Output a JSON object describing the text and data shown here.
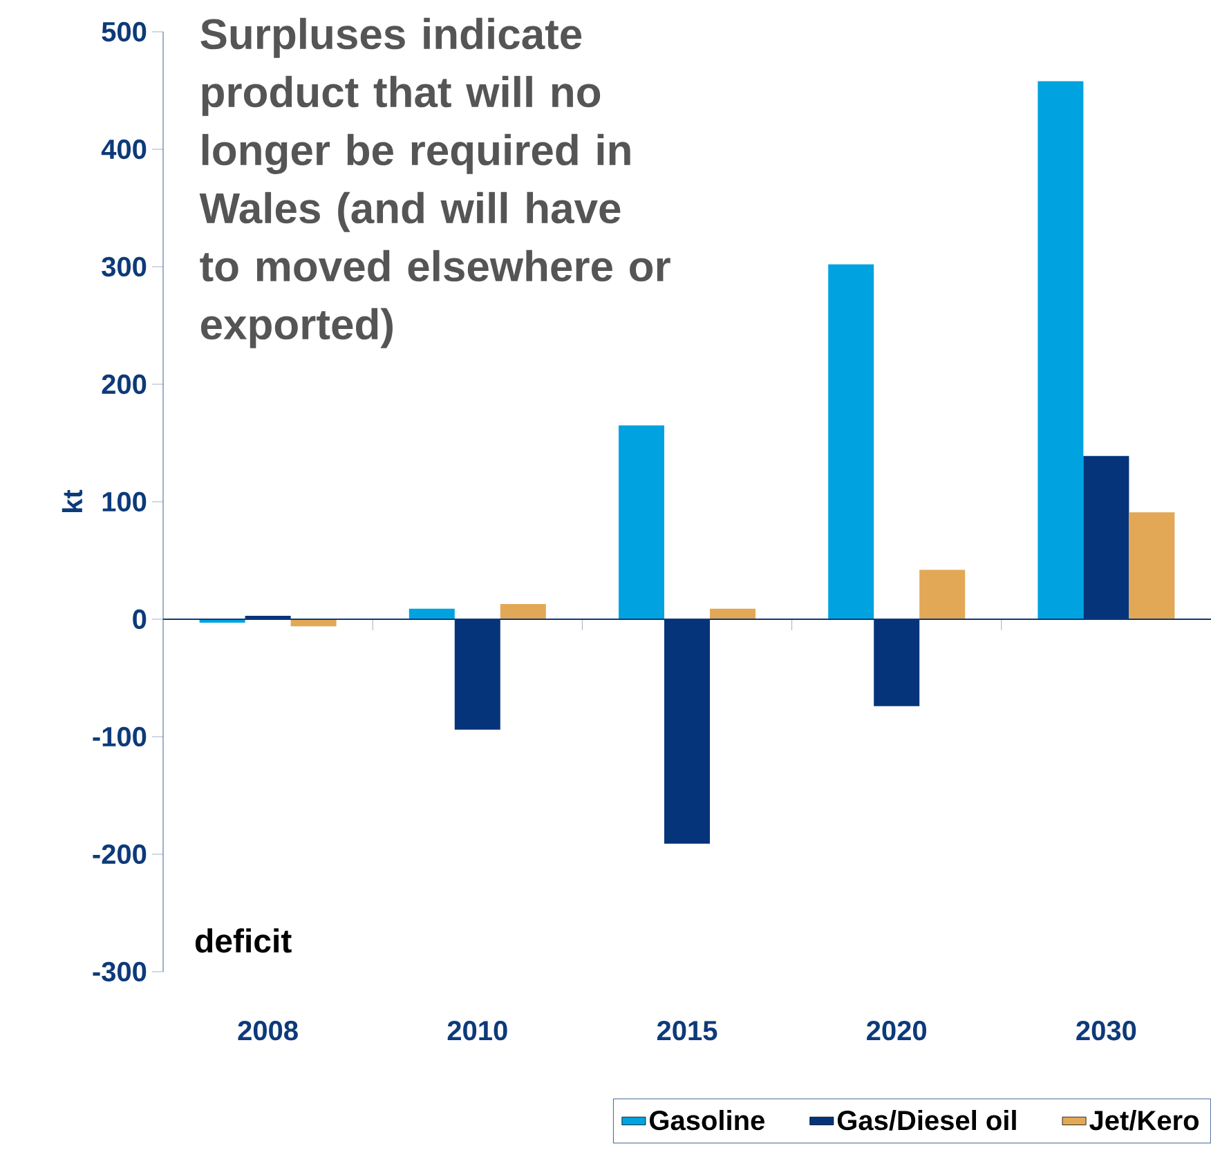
{
  "chart_data": {
    "type": "bar",
    "categories": [
      "2008",
      "2010",
      "2015",
      "2020",
      "2030"
    ],
    "series": [
      {
        "name": "Gasoline",
        "color": "#00a3e0",
        "values": [
          -3,
          9,
          165,
          302,
          458
        ]
      },
      {
        "name": "Gas/Diesel oil",
        "color": "#06347a",
        "values": [
          3,
          -94,
          -191,
          -74,
          139
        ]
      },
      {
        "name": "Jet/Kero",
        "color": "#e2a856",
        "values": [
          -6,
          13,
          9,
          42,
          91
        ]
      }
    ],
    "ylabel": "kt",
    "ylim": [
      -300,
      500
    ],
    "yticks": [
      -300,
      -200,
      -100,
      0,
      100,
      200,
      300,
      400,
      500
    ],
    "annotations": [
      "Surpluses indicate product that will no longer be required in Wales (and will have to moved elsewhere or exported)",
      "deficit"
    ],
    "ref_lines": [
      {
        "axis": "y",
        "value": 0,
        "color": "#0d3a7a"
      }
    ],
    "grid": false,
    "legend": "bottom"
  }
}
